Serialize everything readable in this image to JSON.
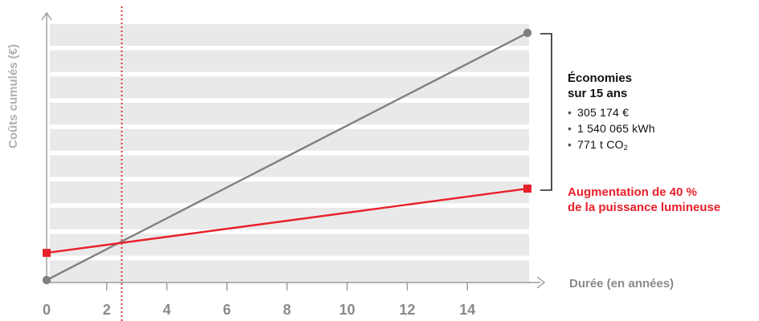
{
  "chart_data": {
    "type": "line",
    "ylabel": "Coûts cumulés (€)",
    "xlabel": "Durée (en années)",
    "xlim": [
      0,
      16.5
    ],
    "x_ticks": [
      0,
      2,
      4,
      6,
      8,
      10,
      12,
      14
    ],
    "y_ticks_shown": false,
    "grid": "horizontal bands",
    "marker_x": 2.5,
    "series": [
      {
        "x": [
          0,
          16
        ],
        "values": [
          0,
          100
        ],
        "color": "#808080",
        "marker": "circle"
      },
      {
        "x": [
          0,
          16
        ],
        "values": [
          11,
          37
        ],
        "color": "#e8202a",
        "marker": "square"
      }
    ],
    "colors": {
      "axis": "#999999",
      "band": "#e9e9e9",
      "grey_line": "#808080",
      "red": "#e8202a",
      "bracket": "#222222"
    }
  },
  "annotation": {
    "heading_1": "Économies",
    "heading_2": "sur 15 ans",
    "items": [
      {
        "prefix": "305 174 €"
      },
      {
        "prefix": "1 540 065 kWh"
      },
      {
        "prefix": "771 t CO",
        "sub": "2"
      }
    ]
  },
  "note": {
    "line_1": "Augmentation de 40 %",
    "line_2": "de la puissance lumineuse"
  }
}
